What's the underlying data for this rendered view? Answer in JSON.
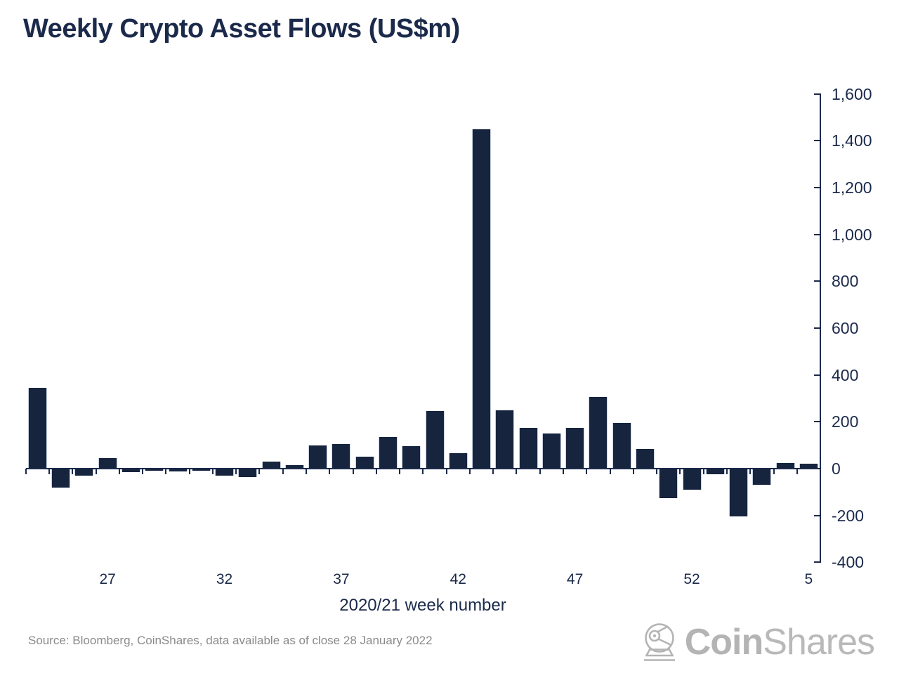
{
  "title": "Weekly Crypto Asset Flows (US$m)",
  "source_note": "Source: Bloomberg, CoinShares, data available as of close 28 January 2022",
  "logo": {
    "bold": "Coin",
    "light": "Shares"
  },
  "colors": {
    "bar": "#16243e",
    "bar_edge": "#c7d0df",
    "axis": "#1b2a4b",
    "text": "#1b2a4b",
    "source_text": "#8a8a8a",
    "logo_gray": "#b4b4b4"
  },
  "chart_data": {
    "type": "bar",
    "title": "Weekly Crypto Asset Flows (US$m)",
    "xlabel": "2020/21 week number",
    "ylabel": "",
    "weeks": [
      24,
      25,
      26,
      27,
      28,
      29,
      30,
      31,
      32,
      33,
      34,
      35,
      36,
      37,
      38,
      39,
      40,
      41,
      42,
      43,
      44,
      45,
      46,
      47,
      48,
      49,
      50,
      51,
      52,
      1,
      2,
      3,
      4,
      5
    ],
    "values": [
      345,
      -80,
      -30,
      45,
      -15,
      -10,
      -12,
      -10,
      -30,
      -35,
      30,
      15,
      100,
      105,
      50,
      135,
      95,
      245,
      65,
      1450,
      250,
      175,
      150,
      175,
      305,
      195,
      85,
      -125,
      -90,
      -25,
      -205,
      -70,
      25,
      20
    ],
    "x_axis_tick_labels": [
      "27",
      "32",
      "37",
      "42",
      "47",
      "52",
      "5"
    ],
    "x_axis_tick_label_week_indices": [
      3,
      8,
      13,
      18,
      23,
      28,
      33
    ],
    "y_tick_values": [
      1600,
      1400,
      1200,
      1000,
      800,
      600,
      400,
      200,
      0,
      -200,
      -400
    ],
    "y_tick_labels": [
      "1,600",
      "1,400",
      "1,200",
      "1,000",
      "800",
      "600",
      "400",
      "200",
      "0",
      "-200",
      "-400"
    ],
    "ylim": [
      -400,
      1600
    ],
    "yaxis_side": "right",
    "grid": false,
    "bar_color": "#16243e"
  }
}
